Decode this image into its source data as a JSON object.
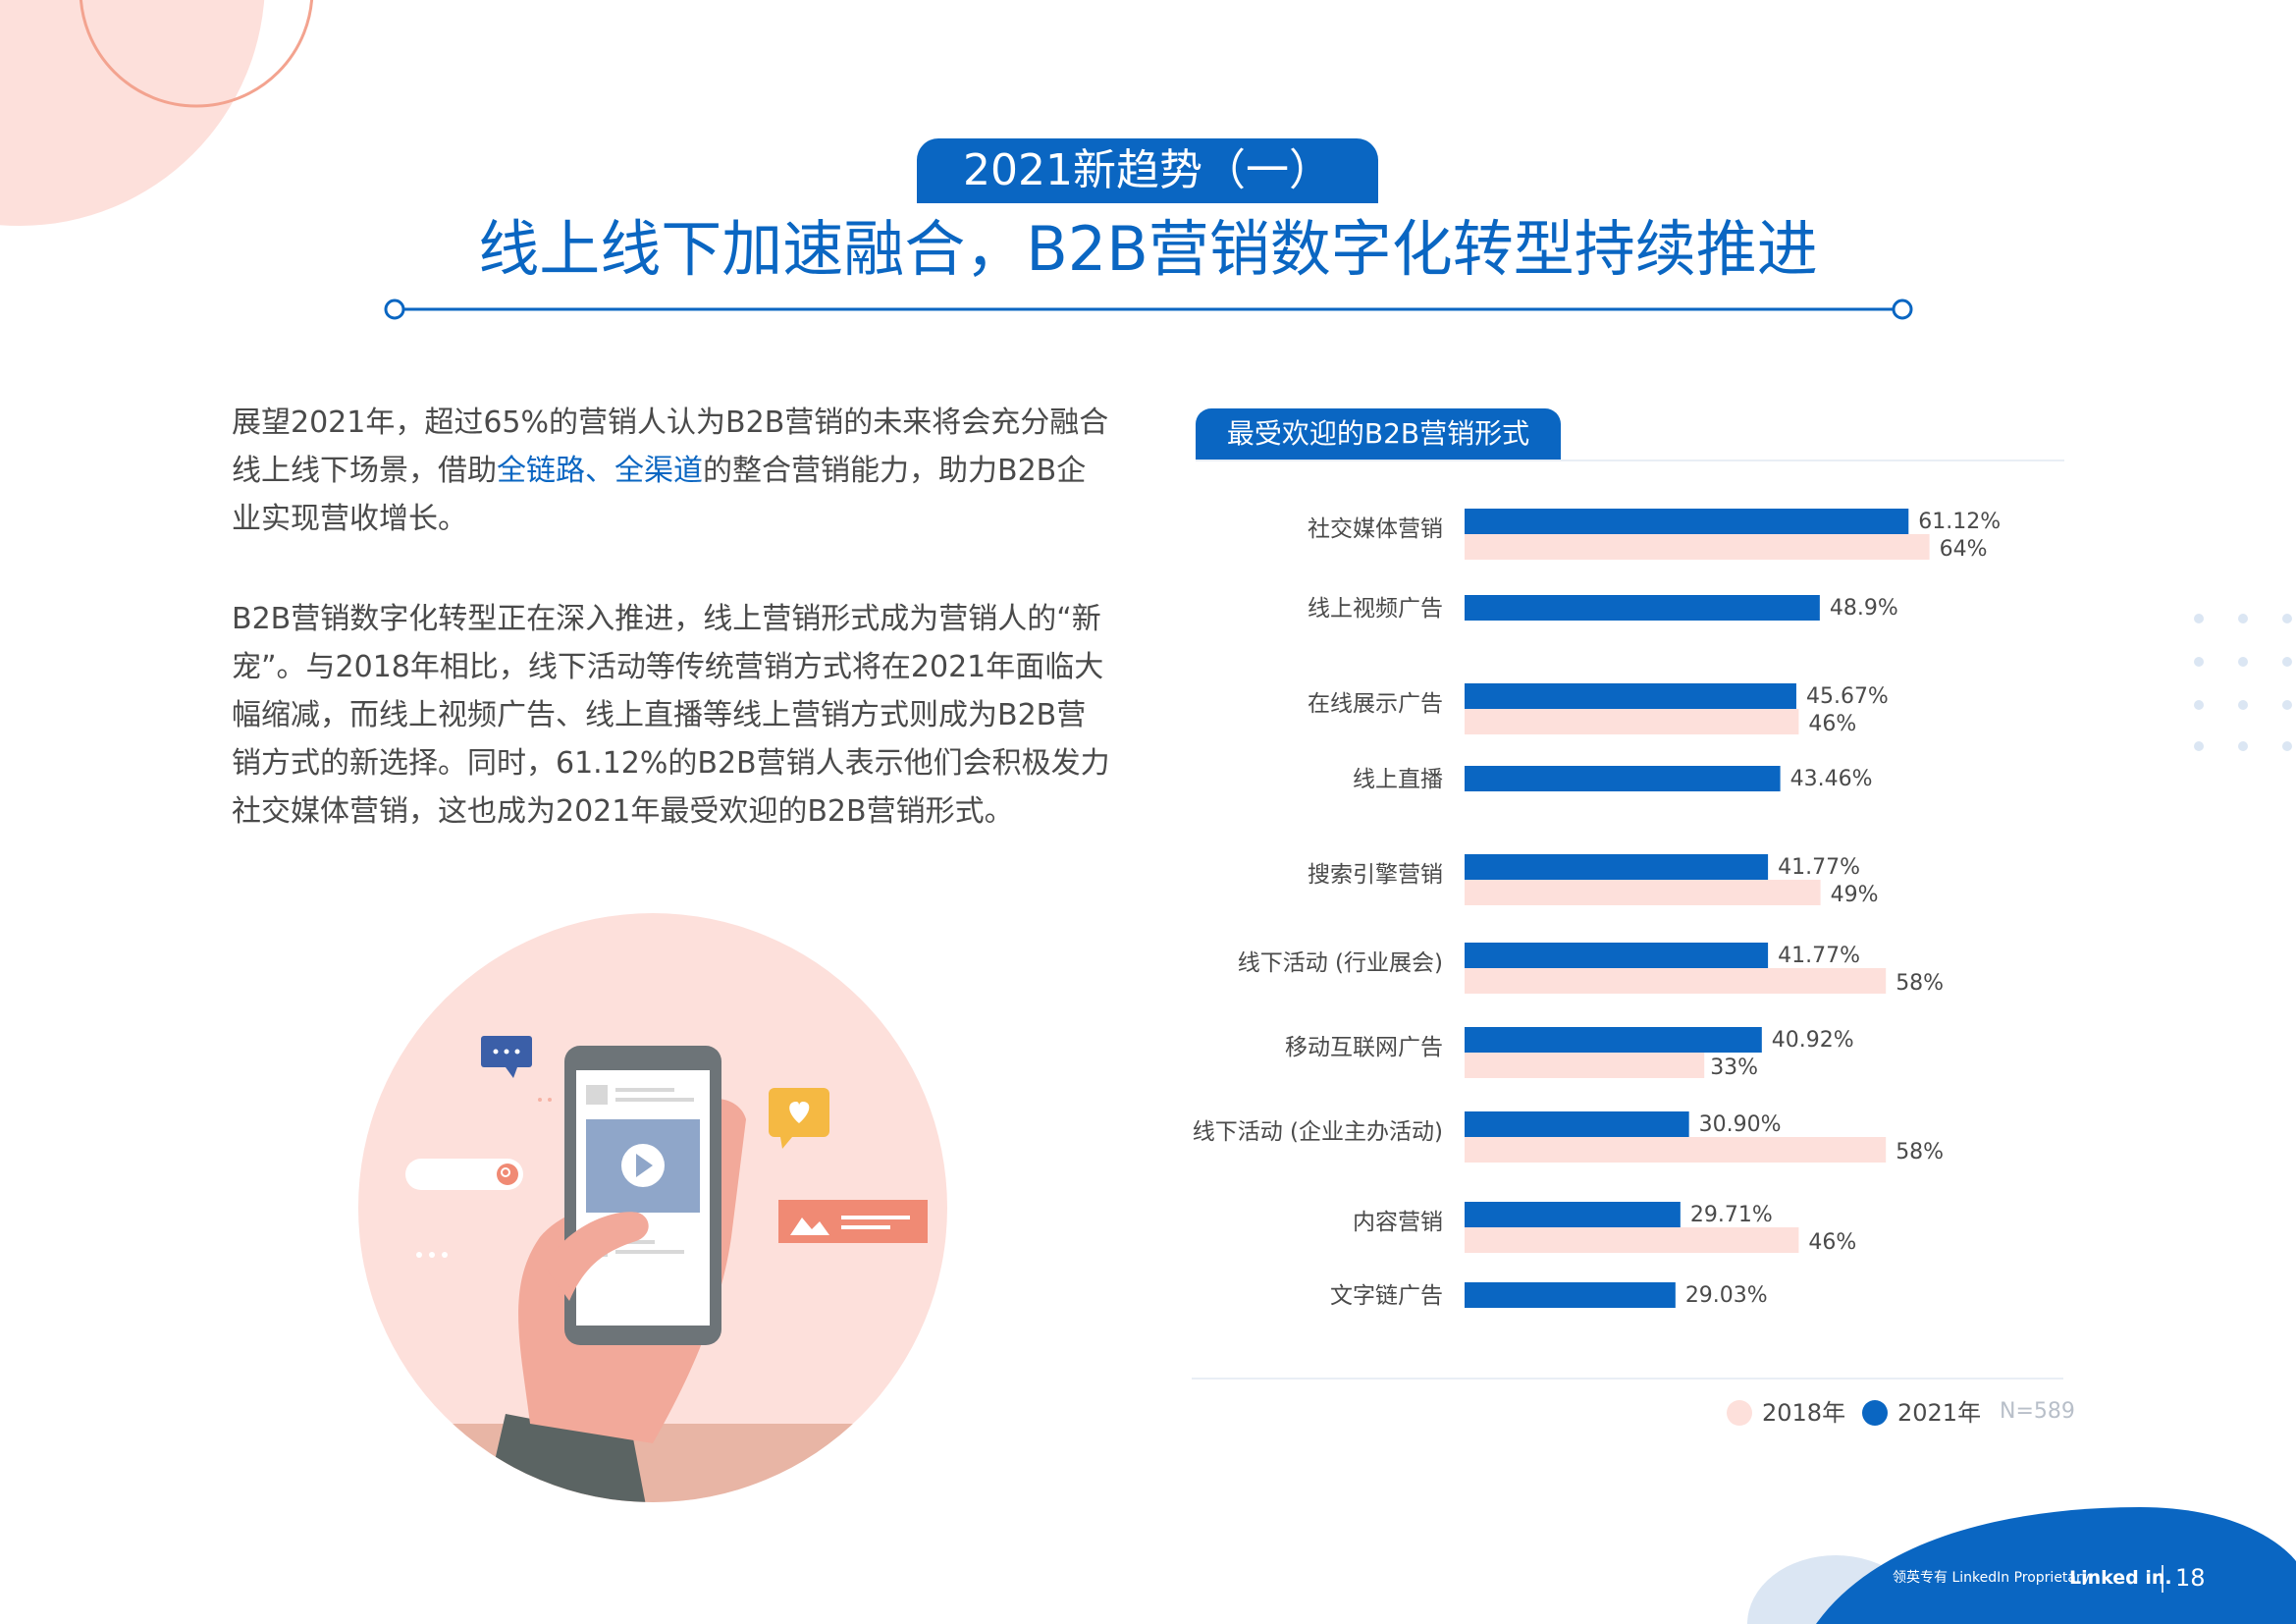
{
  "header": {
    "tag": "2021新趋势（一）",
    "title": "线上线下加速融合，B2B营销数字化转型持续推进"
  },
  "paragraph1": {
    "part1": "展望2021年，超过65%的营销人认为B2B营销的未来将会充分融合线上线下场景，借助",
    "highlight": "全链路、全渠道",
    "part2": "的整合营销能力，助力B2B企业实现营收增长。"
  },
  "paragraph2": "B2B营销数字化转型正在深入推进，线上营销形式成为营销人的“新宠”。与2018年相比，线下活动等传统营销方式将在2021年面临大幅缩减，而线上视频广告、线上直播等线上营销方式则成为B2B营销方式的新选择。同时，61.12%的B2B营销人表示他们会积极发力社交媒体营销，这也成为2021年最受欢迎的B2B营销形式。",
  "colors": {
    "brand_blue": "#0a66c2",
    "pink": "#fde0db",
    "text": "#4a4a4a"
  },
  "chart_data": {
    "type": "bar",
    "orientation": "horizontal",
    "title": "最受欢迎的B2B营销形式",
    "categories": [
      "社交媒体营销",
      "线上视频广告",
      "在线展示广告",
      "线上直播",
      "搜索引擎营销",
      "线下活动 (行业展会)",
      "移动互联网广告",
      "线下活动 (企业主办活动)",
      "内容营销",
      "文字链广告"
    ],
    "series": [
      {
        "name": "2021年",
        "color": "#0a66c2",
        "values": [
          61.12,
          48.9,
          45.67,
          43.46,
          41.77,
          41.77,
          40.92,
          30.9,
          29.71,
          29.03
        ],
        "labels": [
          "61.12%",
          "48.9%",
          "45.67%",
          "43.46%",
          "41.77%",
          "41.77%",
          "40.92%",
          "30.90%",
          "29.71%",
          "29.03%"
        ]
      },
      {
        "name": "2018年",
        "color": "#fde0db",
        "values": [
          64,
          null,
          46,
          null,
          49,
          58,
          33,
          58,
          46,
          null
        ],
        "labels": [
          "64%",
          "",
          "46%",
          "",
          "49%",
          "58%",
          "33%",
          "58%",
          "46%",
          ""
        ]
      }
    ],
    "legend_position": "bottom-right",
    "note": "N=589",
    "grid": false
  },
  "footer": {
    "text": "领英专有 LinkedIn Proprietary",
    "brand": "Linked in.",
    "page": "18"
  }
}
